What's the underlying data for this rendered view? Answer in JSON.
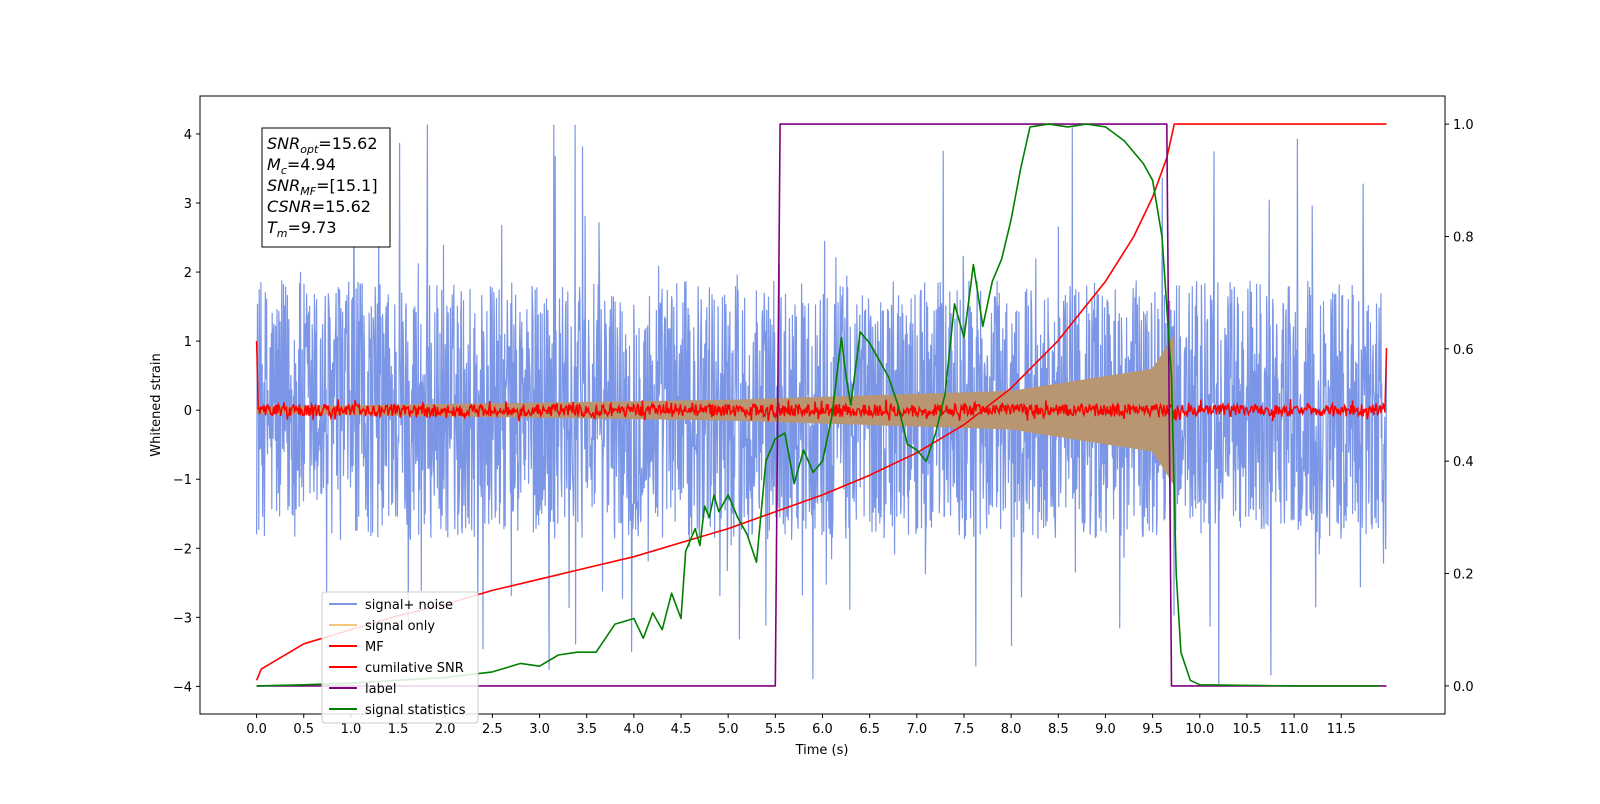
{
  "chart_data": {
    "type": "line",
    "xlabel": "Time (s)",
    "ylabel": "Whitened strain",
    "xlim": [
      -0.6,
      12.6
    ],
    "ylim": [
      -4.4,
      4.55
    ],
    "y2lim": [
      -0.05,
      1.05
    ],
    "xticks": [
      "0.0",
      "0.5",
      "1.0",
      "1.5",
      "2.0",
      "2.5",
      "3.0",
      "3.5",
      "4.0",
      "4.5",
      "5.0",
      "5.5",
      "6.0",
      "6.5",
      "7.0",
      "7.5",
      "8.0",
      "8.5",
      "9.0",
      "9.5",
      "10.0",
      "10.5",
      "11.0",
      "11.5"
    ],
    "yticks": [
      "−4",
      "−3",
      "−2",
      "−1",
      "0",
      "1",
      "2",
      "3",
      "4"
    ],
    "y2ticks": [
      "0.0",
      "0.2",
      "0.4",
      "0.6",
      "0.8",
      "1.0"
    ],
    "grid": false,
    "legend_position": "lower-left",
    "stats_box": {
      "line1": {
        "base": "SNR",
        "sub": "opt",
        "rest": "=15.62"
      },
      "line2": {
        "base": "M",
        "sub": "c",
        "rest": "=4.94"
      },
      "line3": {
        "base": "SNR",
        "sub": "MF",
        "rest": "=[15.1]"
      },
      "line4": {
        "base": "CSNR",
        "sub": "",
        "rest": "=15.62"
      },
      "line5": {
        "base": "T",
        "sub": "m",
        "rest": "=9.73"
      }
    },
    "series": [
      {
        "name": "signal+ noise",
        "color": "#7b96e6",
        "axis": "left",
        "description_values": {
          "x_range": [
            0.0,
            11.98
          ],
          "envelope_typical": [
            -2.6,
            2.6
          ],
          "peak_max": 4.15,
          "peak_min": -4.0
        }
      },
      {
        "name": "signal only",
        "color": "#f5c67e",
        "axis": "left",
        "description_values": {
          "x_range": [
            0.0,
            9.73
          ],
          "amplitude_at_start": 0.05,
          "amplitude_at_5s": 0.15,
          "amplitude_at_8s": 0.28,
          "amplitude_at_9.5s": 0.6,
          "amplitude_at_9.73s": 1.1
        }
      },
      {
        "name": "MF",
        "color": "#ff0000",
        "axis": "left",
        "description_values": {
          "x_range": [
            0.0,
            11.98
          ],
          "baseline": 0.0,
          "noise_amplitude": 0.1,
          "start_value": 1.0,
          "end_value": 0.9
        }
      },
      {
        "name": "cumilative SNR",
        "color": "#ff0000",
        "axis": "right",
        "x": [
          0.0,
          0.05,
          0.5,
          1.0,
          1.5,
          2.0,
          2.5,
          3.0,
          3.5,
          4.0,
          4.5,
          5.0,
          5.5,
          6.0,
          6.5,
          7.0,
          7.5,
          8.0,
          8.5,
          9.0,
          9.3,
          9.5,
          9.65,
          9.73,
          11.98
        ],
        "values": [
          0.01,
          0.03,
          0.075,
          0.1,
          0.125,
          0.145,
          0.17,
          0.19,
          0.21,
          0.23,
          0.255,
          0.28,
          0.31,
          0.34,
          0.375,
          0.415,
          0.465,
          0.53,
          0.615,
          0.72,
          0.8,
          0.87,
          0.94,
          1.0,
          1.0
        ]
      },
      {
        "name": "label",
        "color": "#800080",
        "axis": "right",
        "x": [
          0.0,
          5.5,
          5.55,
          9.65,
          9.7,
          11.98
        ],
        "values": [
          0.0,
          0.0,
          1.0,
          1.0,
          0.0,
          0.0
        ]
      },
      {
        "name": "signal statistics",
        "color": "#008000",
        "axis": "right",
        "x": [
          0.0,
          0.5,
          1.0,
          1.5,
          2.0,
          2.5,
          2.8,
          3.0,
          3.2,
          3.4,
          3.6,
          3.8,
          4.0,
          4.1,
          4.2,
          4.3,
          4.4,
          4.5,
          4.55,
          4.6,
          4.65,
          4.7,
          4.75,
          4.8,
          4.85,
          4.9,
          5.0,
          5.1,
          5.2,
          5.3,
          5.4,
          5.5,
          5.6,
          5.7,
          5.8,
          5.9,
          6.0,
          6.1,
          6.2,
          6.25,
          6.3,
          6.4,
          6.5,
          6.6,
          6.7,
          6.8,
          6.9,
          7.0,
          7.1,
          7.2,
          7.3,
          7.4,
          7.5,
          7.6,
          7.7,
          7.8,
          7.9,
          8.0,
          8.1,
          8.2,
          8.4,
          8.6,
          8.8,
          9.0,
          9.2,
          9.4,
          9.5,
          9.6,
          9.7,
          9.75,
          9.8,
          9.9,
          10.0,
          11.0,
          11.9
        ],
        "values": [
          0.0,
          0.002,
          0.005,
          0.01,
          0.015,
          0.025,
          0.04,
          0.035,
          0.055,
          0.06,
          0.06,
          0.11,
          0.12,
          0.085,
          0.13,
          0.1,
          0.165,
          0.12,
          0.24,
          0.26,
          0.28,
          0.25,
          0.32,
          0.3,
          0.34,
          0.31,
          0.34,
          0.3,
          0.27,
          0.22,
          0.4,
          0.44,
          0.45,
          0.36,
          0.42,
          0.38,
          0.4,
          0.48,
          0.62,
          0.55,
          0.5,
          0.63,
          0.61,
          0.58,
          0.55,
          0.5,
          0.43,
          0.42,
          0.4,
          0.45,
          0.52,
          0.68,
          0.62,
          0.75,
          0.64,
          0.72,
          0.76,
          0.83,
          0.92,
          0.995,
          1.0,
          0.995,
          1.0,
          0.995,
          0.97,
          0.93,
          0.9,
          0.8,
          0.55,
          0.2,
          0.06,
          0.01,
          0.002,
          0.0,
          0.0
        ]
      }
    ]
  }
}
